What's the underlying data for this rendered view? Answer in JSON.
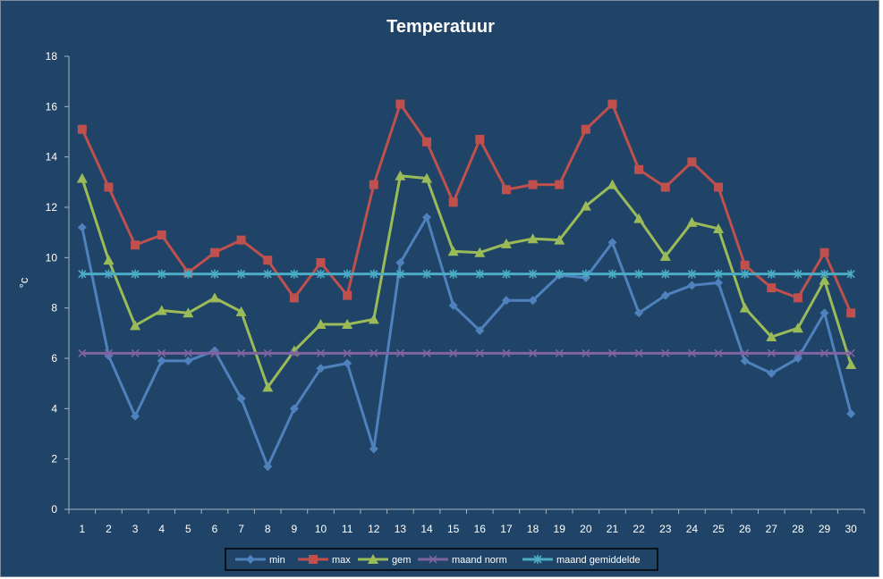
{
  "chart_data": {
    "type": "line",
    "title": "Temperatuur",
    "xlabel": "",
    "ylabel": "°c",
    "ylim": [
      0,
      18
    ],
    "yticks": [
      0,
      2,
      4,
      6,
      8,
      10,
      12,
      14,
      16,
      18
    ],
    "grid": false,
    "legend_position": "bottom",
    "categories": [
      "1",
      "2",
      "3",
      "4",
      "5",
      "6",
      "7",
      "8",
      "9",
      "10",
      "11",
      "12",
      "13",
      "14",
      "15",
      "16",
      "17",
      "18",
      "19",
      "20",
      "21",
      "22",
      "23",
      "24",
      "25",
      "26",
      "27",
      "28",
      "29",
      "30"
    ],
    "series": [
      {
        "name": "min",
        "color": "#4f81bd",
        "marker": "diamond",
        "values": [
          11.2,
          6.1,
          3.7,
          5.9,
          5.9,
          6.3,
          4.4,
          1.7,
          4.0,
          5.6,
          5.8,
          2.4,
          9.8,
          11.6,
          8.1,
          7.1,
          8.3,
          8.3,
          9.3,
          9.2,
          10.6,
          7.8,
          8.5,
          8.9,
          9.0,
          5.9,
          5.4,
          6.0,
          7.8,
          3.8
        ]
      },
      {
        "name": "max",
        "color": "#c0504d",
        "marker": "square",
        "values": [
          15.1,
          12.8,
          10.5,
          10.9,
          9.4,
          10.2,
          10.7,
          9.9,
          8.4,
          9.8,
          8.5,
          12.9,
          16.1,
          14.6,
          12.2,
          14.7,
          12.7,
          12.9,
          12.9,
          15.1,
          16.1,
          13.5,
          12.8,
          13.8,
          12.8,
          9.7,
          8.8,
          8.4,
          10.2,
          7.8
        ]
      },
      {
        "name": "gem",
        "color": "#9bbb59",
        "marker": "triangle",
        "values": [
          13.15,
          9.9,
          7.3,
          7.9,
          7.8,
          8.4,
          7.85,
          4.85,
          6.3,
          7.35,
          7.35,
          7.55,
          13.25,
          13.15,
          10.25,
          10.2,
          10.55,
          10.75,
          10.7,
          12.05,
          12.9,
          11.55,
          10.05,
          11.4,
          11.15,
          8.0,
          6.85,
          7.2,
          9.1,
          5.75
        ]
      },
      {
        "name": "maand norm",
        "color": "#8064a2",
        "marker": "x",
        "values": [
          6.2,
          6.2,
          6.2,
          6.2,
          6.2,
          6.2,
          6.2,
          6.2,
          6.2,
          6.2,
          6.2,
          6.2,
          6.2,
          6.2,
          6.2,
          6.2,
          6.2,
          6.2,
          6.2,
          6.2,
          6.2,
          6.2,
          6.2,
          6.2,
          6.2,
          6.2,
          6.2,
          6.2,
          6.2,
          6.2
        ]
      },
      {
        "name": "maand gemiddelde",
        "color": "#4bacc6",
        "marker": "star",
        "values": [
          9.35,
          9.35,
          9.35,
          9.35,
          9.35,
          9.35,
          9.35,
          9.35,
          9.35,
          9.35,
          9.35,
          9.35,
          9.35,
          9.35,
          9.35,
          9.35,
          9.35,
          9.35,
          9.35,
          9.35,
          9.35,
          9.35,
          9.35,
          9.35,
          9.35,
          9.35,
          9.35,
          9.35,
          9.35,
          9.35
        ]
      }
    ]
  }
}
